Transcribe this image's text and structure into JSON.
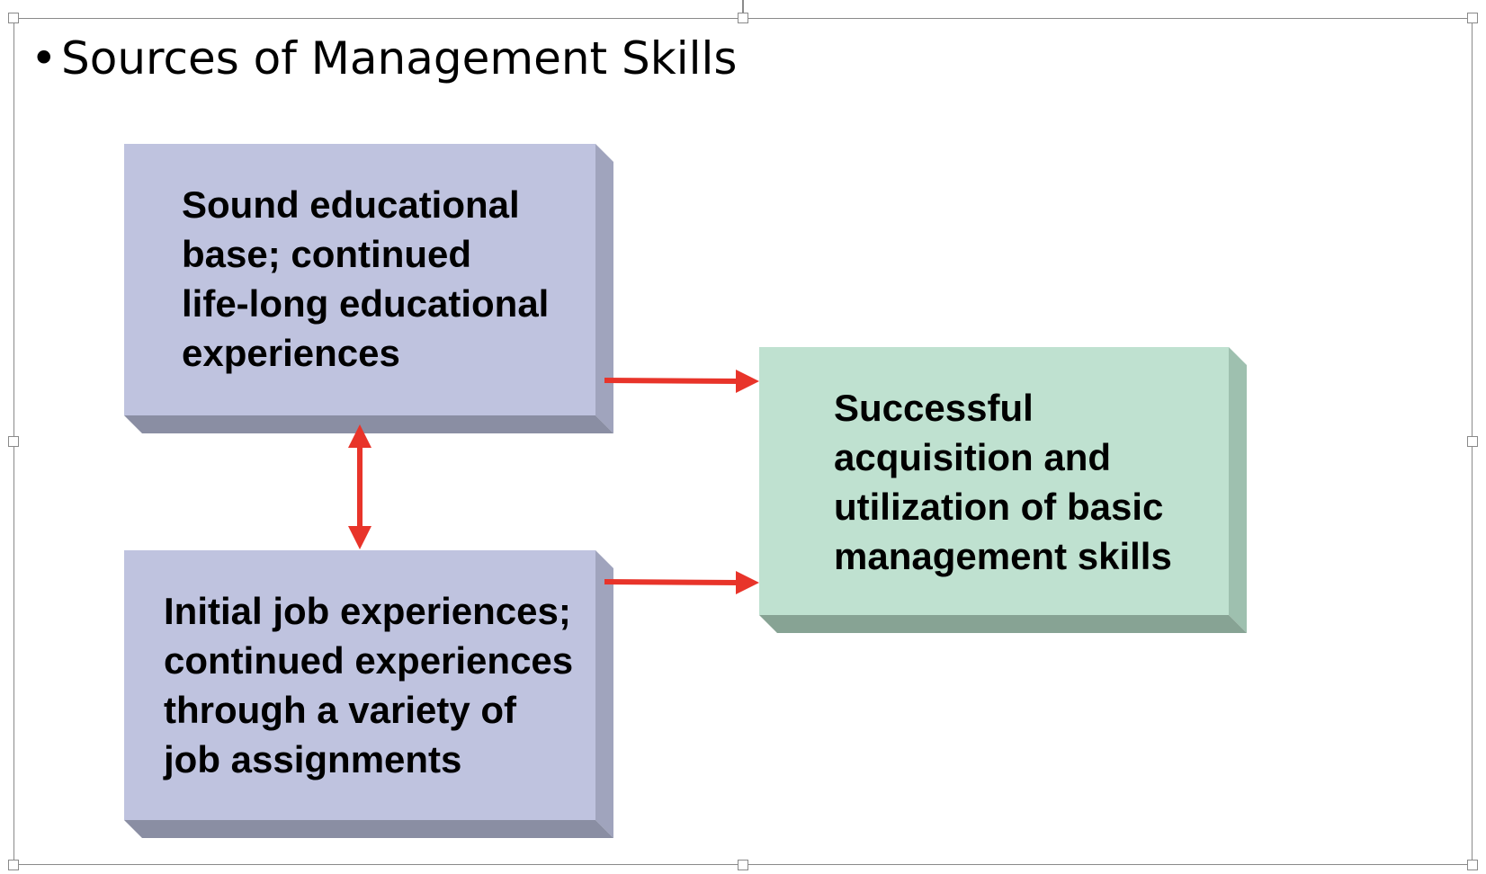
{
  "slide": {
    "title_bullet": "•",
    "title": "Sources of Management Skills"
  },
  "diagram": {
    "boxes": [
      {
        "id": "education",
        "lines": [
          "Sound educational",
          "base; continued",
          "life-long educational",
          "experiences"
        ],
        "face_color": "#bfc3df",
        "side_color": "#a0a4bd",
        "bottom_color": "#8a8ea3"
      },
      {
        "id": "job",
        "lines": [
          "Initial job experiences;",
          "continued experiences",
          "through a variety of",
          "job assignments"
        ],
        "face_color": "#bfc3df",
        "side_color": "#a0a4bd",
        "bottom_color": "#8a8ea3"
      },
      {
        "id": "outcome",
        "lines": [
          "Successful",
          "acquisition and",
          "utilization of basic",
          "management skills"
        ],
        "face_color": "#bfe1d0",
        "side_color": "#9ec0af",
        "bottom_color": "#87a394"
      }
    ],
    "arrow_color": "#e8342a",
    "connections": [
      {
        "from": "education",
        "to": "outcome",
        "type": "one-way"
      },
      {
        "from": "job",
        "to": "outcome",
        "type": "one-way"
      },
      {
        "from": "education",
        "to": "job",
        "type": "two-way"
      }
    ]
  }
}
